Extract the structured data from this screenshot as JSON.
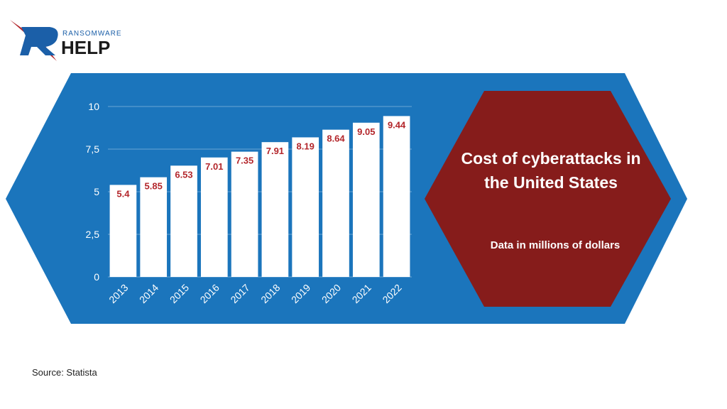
{
  "logo": {
    "top": "RANSOMWARE",
    "main": "HELP"
  },
  "chart_data": {
    "type": "bar",
    "title": "Cost of cyberattacks in the United States",
    "subtitle": "Data in millions of dollars",
    "categories": [
      "2013",
      "2014",
      "2015",
      "2016",
      "2017",
      "2018",
      "2019",
      "2020",
      "2021",
      "2022"
    ],
    "values": [
      5.4,
      5.85,
      6.53,
      7.01,
      7.35,
      7.91,
      8.19,
      8.64,
      9.05,
      9.44
    ],
    "color": "#ffffff",
    "label_color": "#b3262b",
    "ylim": [
      0,
      10
    ],
    "yticks": [
      0,
      {
        "value": 2.5,
        "label": "2,5"
      },
      5,
      {
        "value": 7.5,
        "label": "7,5"
      },
      10
    ],
    "grid": true
  },
  "source": "Source: Statista"
}
